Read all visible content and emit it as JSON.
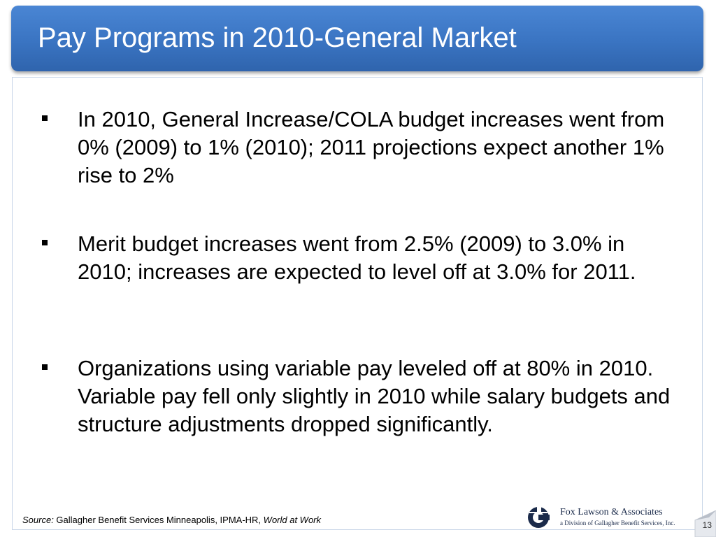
{
  "title": "Pay Programs in 2010-General Market",
  "bullets": [
    {
      "marker": "▪",
      "text": "In 2010, General Increase/COLA budget increases went from 0% (2009) to 1% (2010); 2011 projections expect another 1% rise to 2%"
    },
    {
      "marker": "▪",
      "text": "Merit budget increases went from 2.5% (2009) to 3.0% in 2010; increases are expected to level off at 3.0% for 2011."
    },
    {
      "marker": "▪",
      "text": "Organizations using variable pay leveled off at 80% in 2010. Variable pay fell only slightly in 2010 while salary budgets and structure adjustments dropped significantly."
    }
  ],
  "footer": {
    "source_label": "Source:",
    "source_text": " Gallagher Benefit Services Minneapolis, IPMA-HR, ",
    "source_italic": "World at Work"
  },
  "logo": {
    "name": "Fox Lawson & Associates",
    "subtitle": "a Division of Gallagher Benefit Services, Inc."
  },
  "page_number": "13",
  "colors": {
    "title_bar": "#3a74c2",
    "content_border": "#c9d6e8"
  }
}
